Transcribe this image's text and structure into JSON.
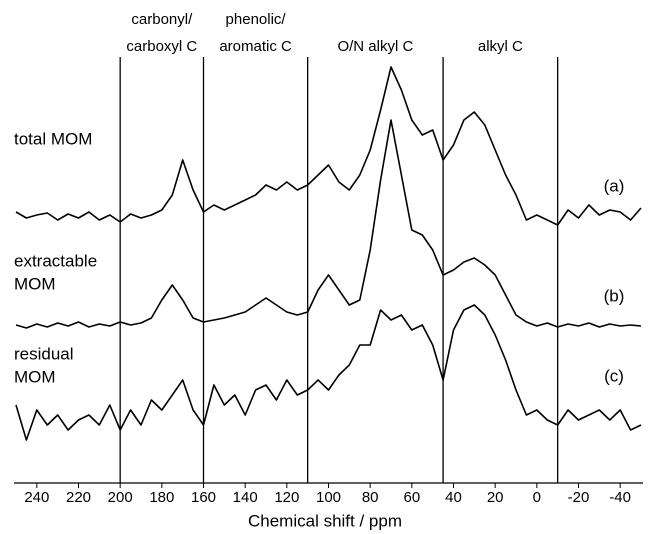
{
  "chart_data": {
    "type": "line",
    "xlabel": "Chemical shift / ppm",
    "xlim": [
      250,
      -50
    ],
    "xticks": [
      240,
      220,
      200,
      180,
      160,
      140,
      120,
      100,
      80,
      60,
      40,
      20,
      0,
      -20,
      -40
    ],
    "ylim": [
      0,
      426
    ],
    "dividers": [
      200,
      160,
      110,
      45,
      -10
    ],
    "regions": [
      [
        "carbonyl/",
        "carboxyl C"
      ],
      [
        "phenolic/",
        "aromatic C"
      ],
      [
        "O/N alkyl C"
      ],
      [
        "alkyl C"
      ]
    ],
    "x": [
      250,
      245,
      240,
      235,
      230,
      225,
      220,
      215,
      210,
      205,
      200,
      195,
      190,
      185,
      180,
      175,
      170,
      165,
      160,
      155,
      150,
      145,
      140,
      135,
      130,
      125,
      120,
      115,
      110,
      105,
      100,
      95,
      90,
      85,
      80,
      75,
      70,
      65,
      60,
      55,
      50,
      45,
      40,
      35,
      30,
      25,
      20,
      15,
      10,
      5,
      0,
      -5,
      -10,
      -15,
      -20,
      -25,
      -30,
      -35,
      -40,
      -45,
      -50
    ],
    "series": [
      {
        "name": [
          "total MOM"
        ],
        "tag": "(a)",
        "color": "#000000",
        "values": [
          271,
          265,
          268,
          270,
          263,
          269,
          265,
          271,
          263,
          268,
          261,
          269,
          265,
          268,
          273,
          288,
          323,
          293,
          271,
          278,
          273,
          278,
          283,
          288,
          298,
          293,
          301,
          293,
          298,
          308,
          318,
          301,
          293,
          308,
          333,
          373,
          416,
          393,
          363,
          348,
          353,
          323,
          338,
          363,
          371,
          358,
          333,
          308,
          288,
          263,
          268,
          263,
          258,
          273,
          265,
          278,
          268,
          273,
          271,
          263,
          275
        ]
      },
      {
        "name": [
          "extractable",
          "MOM"
        ],
        "tag": "(b)",
        "color": "#000000",
        "values": [
          158,
          155,
          159,
          156,
          160,
          157,
          161,
          156,
          159,
          157,
          161,
          158,
          160,
          165,
          183,
          198,
          183,
          165,
          161,
          163,
          165,
          168,
          171,
          178,
          185,
          178,
          171,
          168,
          171,
          193,
          208,
          193,
          178,
          183,
          233,
          303,
          363,
          308,
          253,
          248,
          233,
          208,
          213,
          221,
          225,
          218,
          208,
          188,
          168,
          161,
          157,
          160,
          156,
          159,
          157,
          160,
          156,
          159,
          157,
          158,
          157
        ]
      },
      {
        "name": [
          "residual",
          "MOM"
        ],
        "tag": "(c)",
        "color": "#000000",
        "values": [
          78,
          43,
          73,
          58,
          68,
          53,
          63,
          68,
          58,
          78,
          53,
          73,
          58,
          83,
          73,
          88,
          103,
          73,
          58,
          98,
          78,
          88,
          68,
          93,
          98,
          83,
          103,
          88,
          93,
          103,
          93,
          108,
          118,
          138,
          138,
          173,
          163,
          168,
          153,
          158,
          138,
          103,
          153,
          173,
          178,
          168,
          148,
          123,
          93,
          68,
          73,
          63,
          58,
          73,
          63,
          68,
          73,
          63,
          73,
          53,
          58
        ]
      }
    ]
  }
}
